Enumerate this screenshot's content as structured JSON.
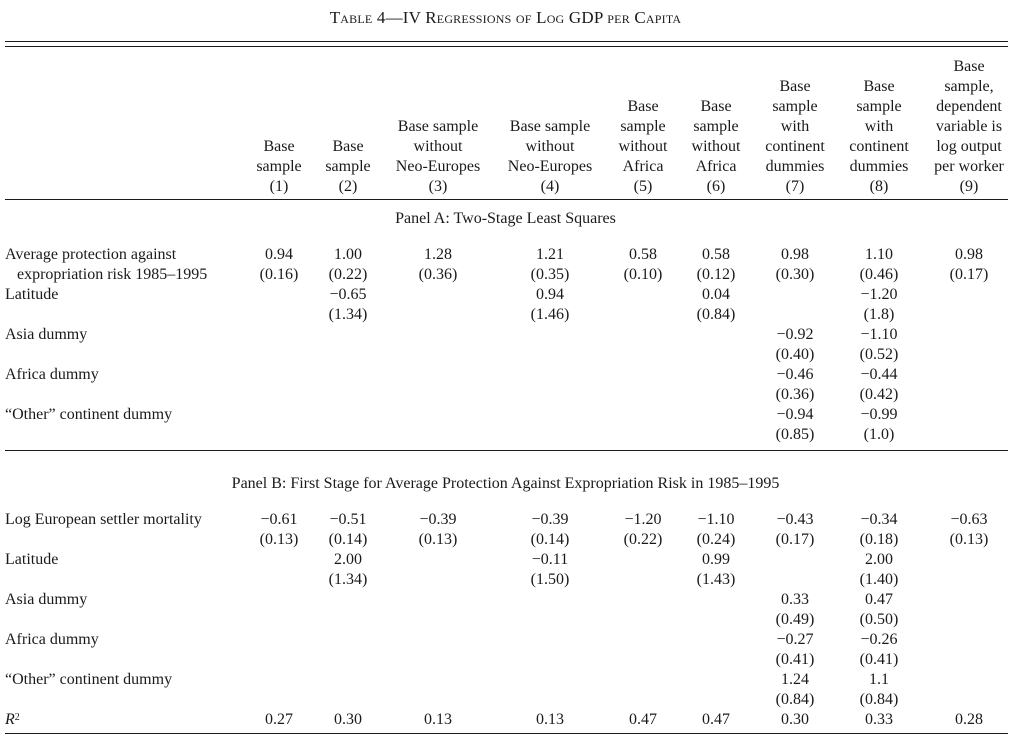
{
  "title": "Table 4—IV Regressions of Log GDP per Capita",
  "columns": [
    "Base\nsample\n(1)",
    "Base\nsample\n(2)",
    "Base sample\nwithout\nNeo-Europes\n(3)",
    "Base sample\nwithout\nNeo-Europes\n(4)",
    "Base\nsample\nwithout\nAfrica\n(5)",
    "Base\nsample\nwithout\nAfrica\n(6)",
    "Base\nsample\nwith\ncontinent\ndummies\n(7)",
    "Base\nsample\nwith\ncontinent\ndummies\n(8)",
    "Base\nsample,\ndependent\nvariable is\nlog output\nper worker\n(9)"
  ],
  "panel_a": {
    "title": "Panel A: Two-Stage Least Squares",
    "rows": [
      {
        "label": "Average protection against\n   expropriation risk 1985–1995",
        "coef": [
          "0.94",
          "1.00",
          "1.28",
          "1.21",
          "0.58",
          "0.58",
          "0.98",
          "1.10",
          "0.98"
        ],
        "se": [
          "(0.16)",
          "(0.22)",
          "(0.36)",
          "(0.35)",
          "(0.10)",
          "(0.12)",
          "(0.30)",
          "(0.46)",
          "(0.17)"
        ]
      },
      {
        "label": "Latitude",
        "coef": [
          "",
          "−0.65",
          "",
          "0.94",
          "",
          "0.04",
          "",
          "−1.20",
          ""
        ],
        "se": [
          "",
          "(1.34)",
          "",
          "(1.46)",
          "",
          "(0.84)",
          "",
          "(1.8)",
          ""
        ]
      },
      {
        "label": "Asia dummy",
        "coef": [
          "",
          "",
          "",
          "",
          "",
          "",
          "−0.92",
          "−1.10",
          ""
        ],
        "se": [
          "",
          "",
          "",
          "",
          "",
          "",
          "(0.40)",
          "(0.52)",
          ""
        ]
      },
      {
        "label": "Africa dummy",
        "coef": [
          "",
          "",
          "",
          "",
          "",
          "",
          "−0.46",
          "−0.44",
          ""
        ],
        "se": [
          "",
          "",
          "",
          "",
          "",
          "",
          "(0.36)",
          "(0.42)",
          ""
        ]
      },
      {
        "label": "“Other” continent dummy",
        "coef": [
          "",
          "",
          "",
          "",
          "",
          "",
          "−0.94",
          "−0.99",
          ""
        ],
        "se": [
          "",
          "",
          "",
          "",
          "",
          "",
          "(0.85)",
          "(1.0)",
          ""
        ]
      }
    ]
  },
  "panel_b": {
    "title": "Panel B: First Stage for Average Protection Against Expropriation Risk in 1985–1995",
    "rows": [
      {
        "label": "Log European settler mortality",
        "coef": [
          "−0.61",
          "−0.51",
          "−0.39",
          "−0.39",
          "−1.20",
          "−1.10",
          "−0.43",
          "−0.34",
          "−0.63"
        ],
        "se": [
          "(0.13)",
          "(0.14)",
          "(0.13)",
          "(0.14)",
          "(0.22)",
          "(0.24)",
          "(0.17)",
          "(0.18)",
          "(0.13)"
        ]
      },
      {
        "label": "Latitude",
        "coef": [
          "",
          "2.00",
          "",
          "−0.11",
          "",
          "0.99",
          "",
          "2.00",
          ""
        ],
        "se": [
          "",
          "(1.34)",
          "",
          "(1.50)",
          "",
          "(1.43)",
          "",
          "(1.40)",
          ""
        ]
      },
      {
        "label": "Asia dummy",
        "coef": [
          "",
          "",
          "",
          "",
          "",
          "",
          "0.33",
          "0.47",
          ""
        ],
        "se": [
          "",
          "",
          "",
          "",
          "",
          "",
          "(0.49)",
          "(0.50)",
          ""
        ]
      },
      {
        "label": "Africa dummy",
        "coef": [
          "",
          "",
          "",
          "",
          "",
          "",
          "−0.27",
          "−0.26",
          ""
        ],
        "se": [
          "",
          "",
          "",
          "",
          "",
          "",
          "(0.41)",
          "(0.41)",
          ""
        ]
      },
      {
        "label": "“Other” continent dummy",
        "coef": [
          "",
          "",
          "",
          "",
          "",
          "",
          "1.24",
          "1.1",
          ""
        ],
        "se": [
          "",
          "",
          "",
          "",
          "",
          "",
          "(0.84)",
          "(0.84)",
          ""
        ]
      }
    ],
    "r2": {
      "label": "R",
      "sup": "2",
      "values": [
        "0.27",
        "0.30",
        "0.13",
        "0.13",
        "0.47",
        "0.47",
        "0.30",
        "0.33",
        "0.28"
      ]
    }
  }
}
